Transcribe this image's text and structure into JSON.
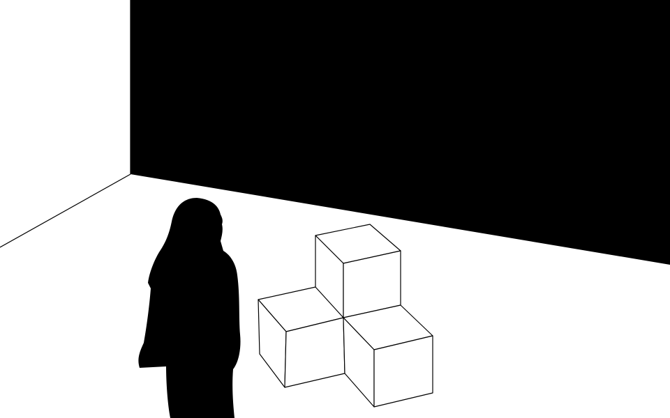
{
  "palette": {
    "background": "#ffffff",
    "back_wall": "#000000",
    "outline": "#000000",
    "cube_face": "#ffffff",
    "silhouette": "#000000"
  }
}
